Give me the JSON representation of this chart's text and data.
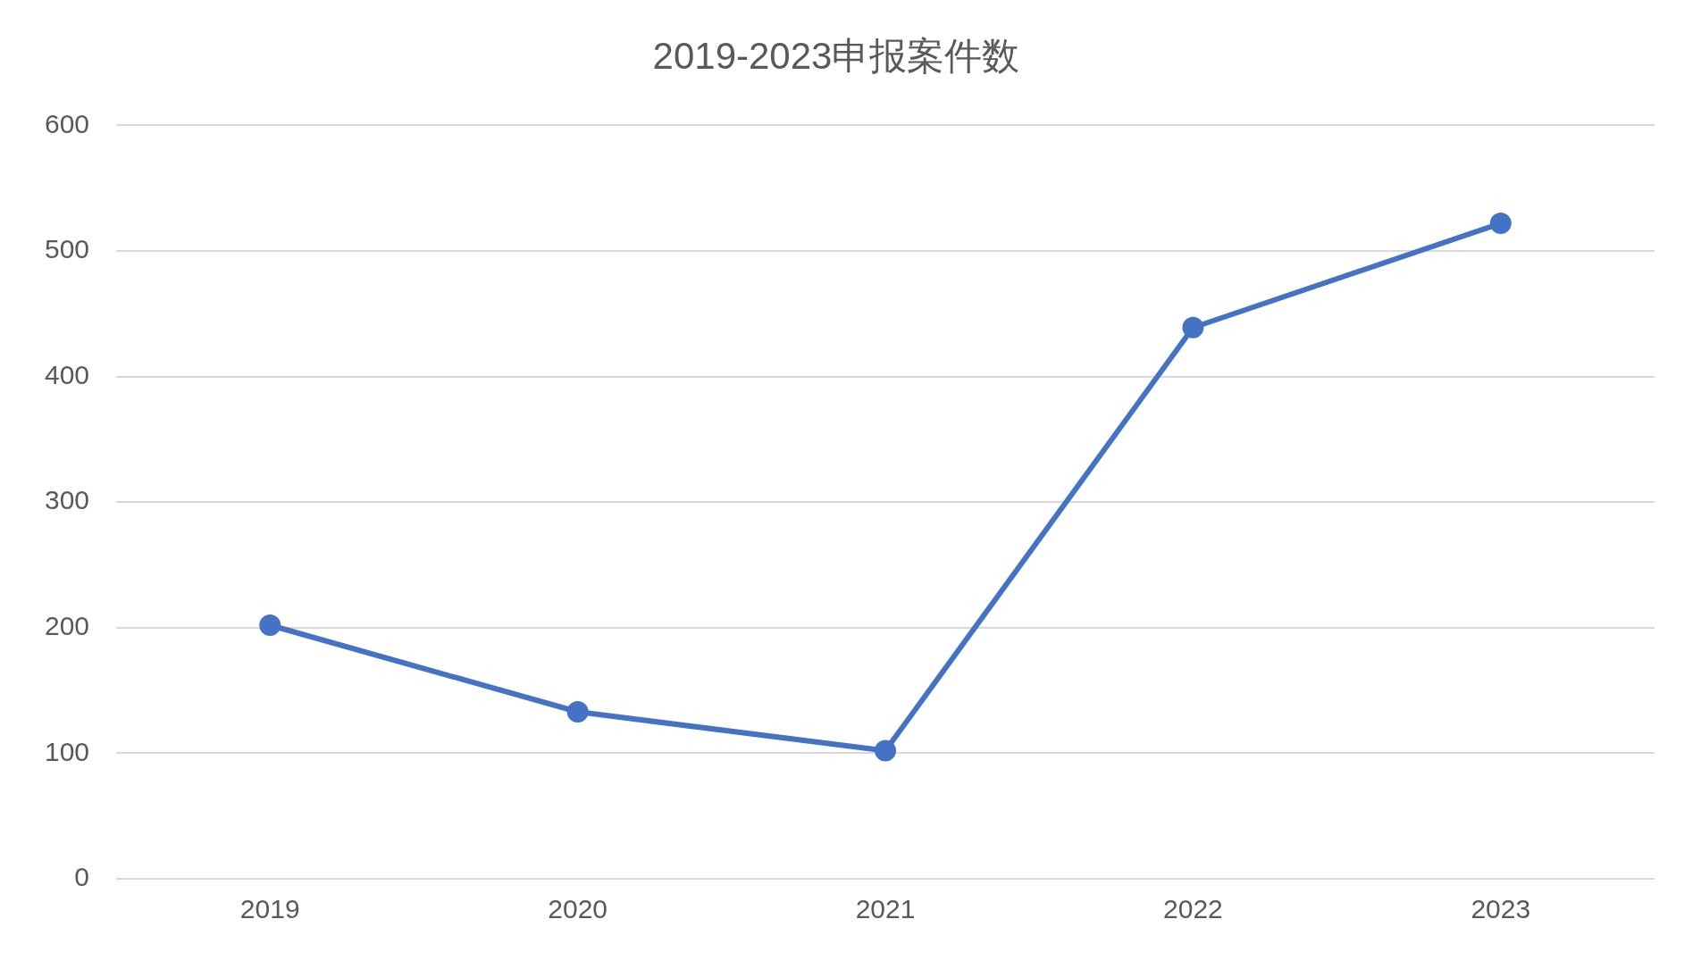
{
  "chart_data": {
    "type": "line",
    "title": "2019-2023申报案件数",
    "categories": [
      "2019",
      "2020",
      "2021",
      "2022",
      "2023"
    ],
    "series": [
      {
        "color": "#4472c4",
        "values": [
          202,
          133,
          102,
          439,
          522
        ]
      }
    ],
    "ylim": [
      0,
      600
    ],
    "yticks": [
      0,
      100,
      200,
      300,
      400,
      500,
      600
    ],
    "grid": "y",
    "marker": "circle",
    "line_style": "solid"
  }
}
